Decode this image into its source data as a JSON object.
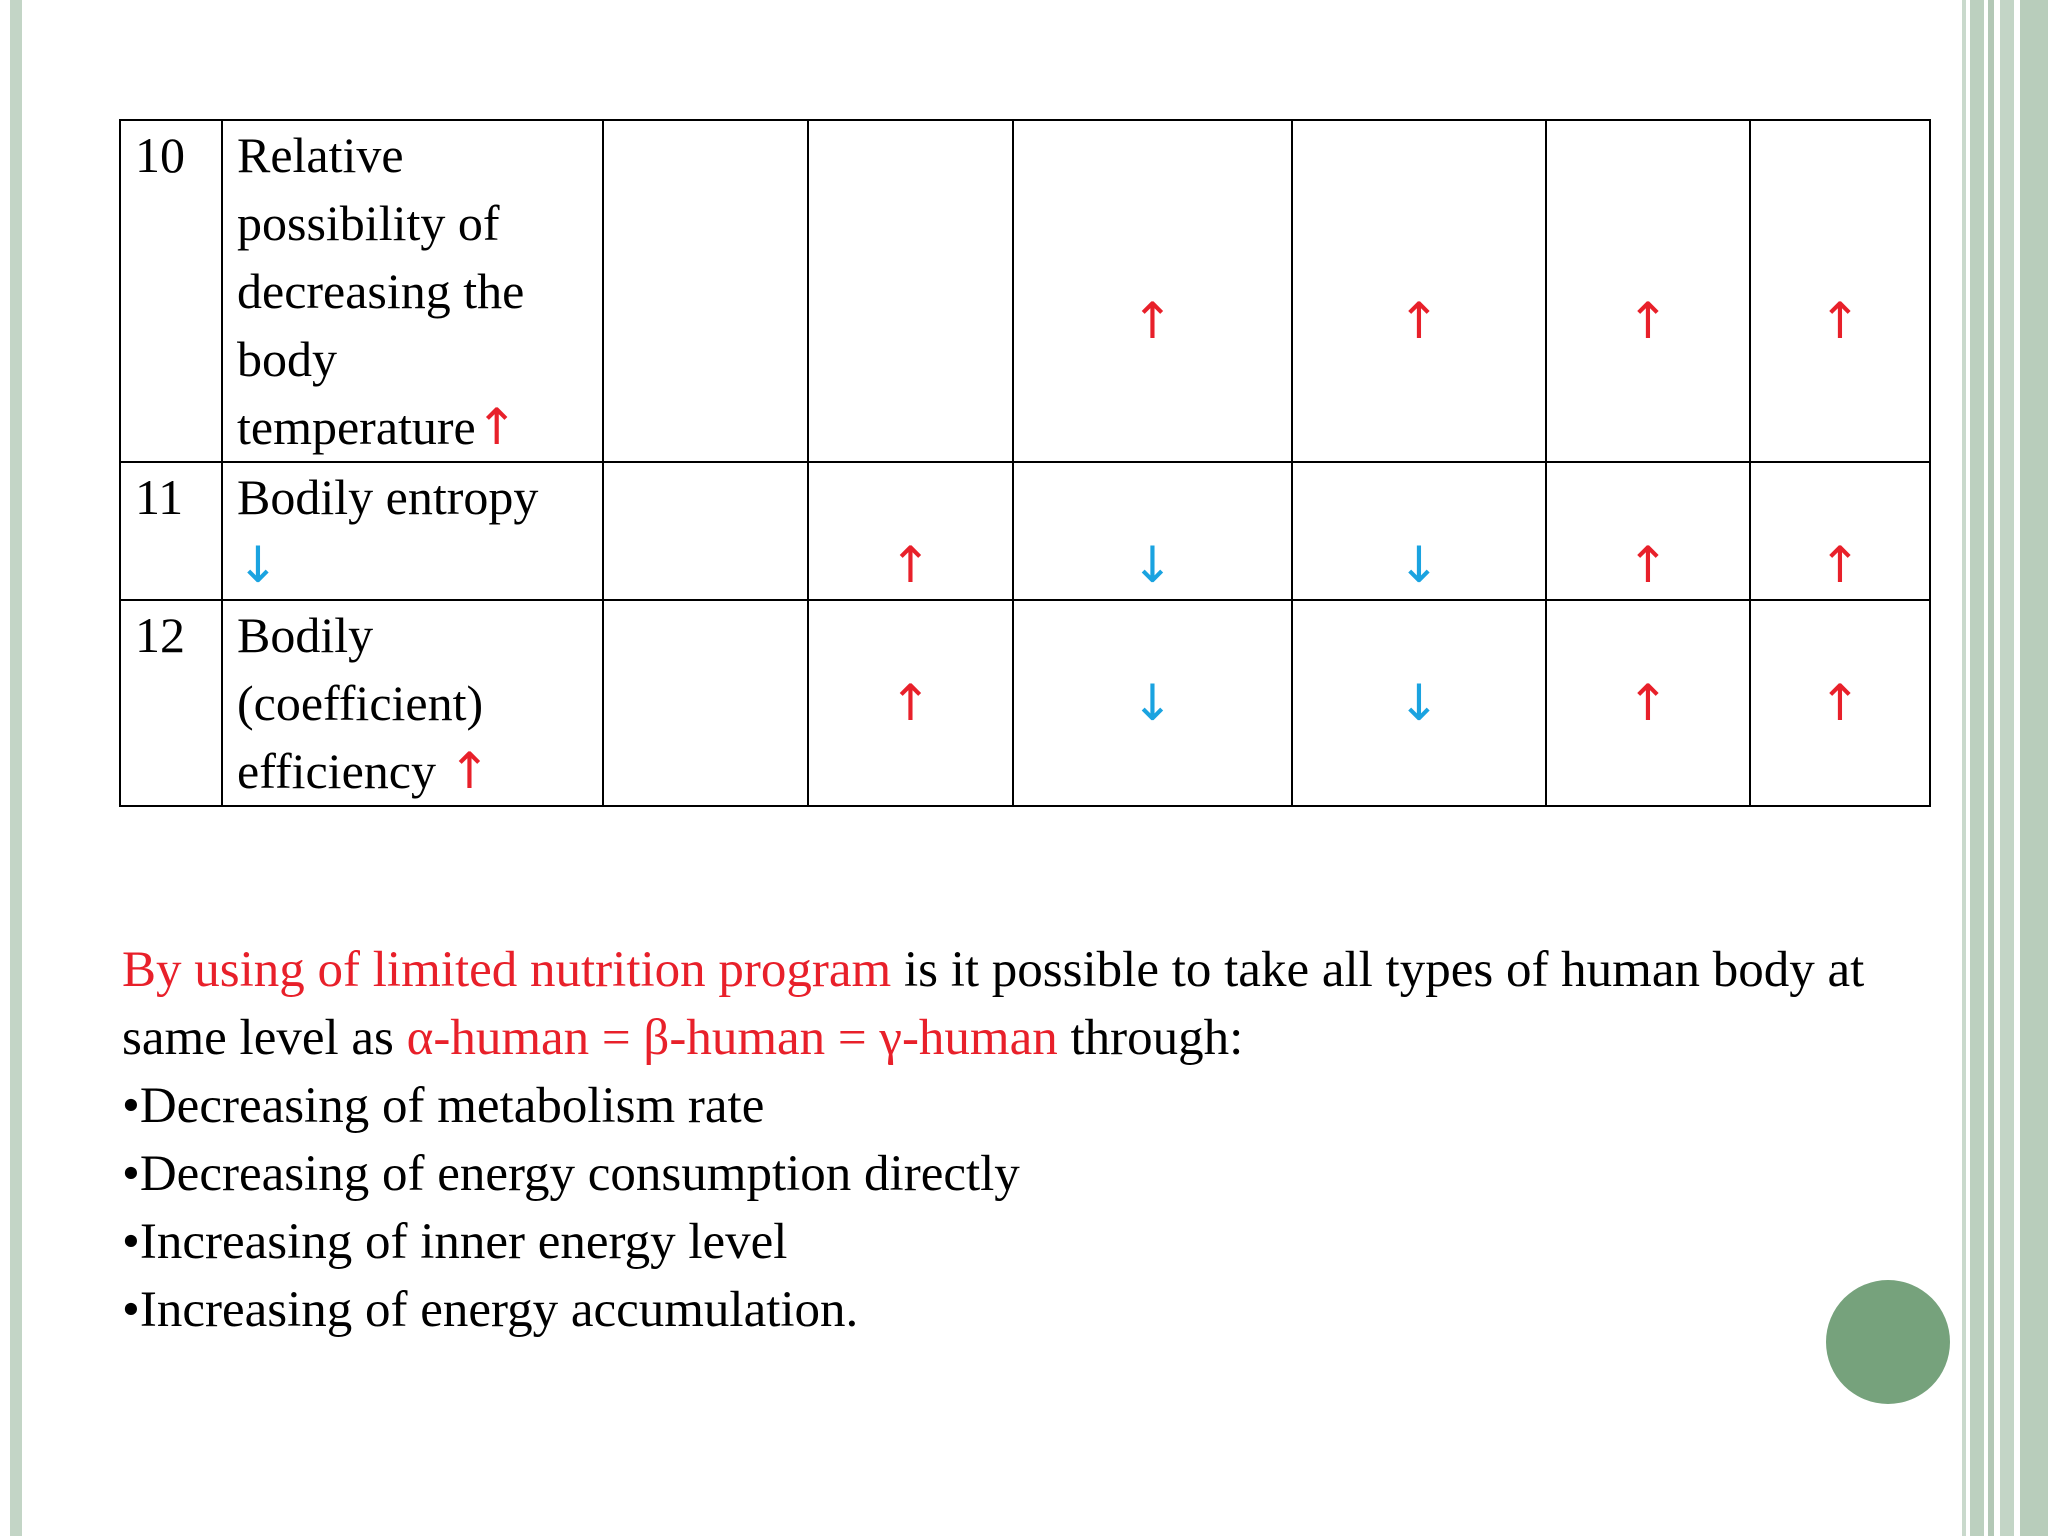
{
  "table": {
    "rows": [
      {
        "number": "10",
        "label_lines": [
          "Relative",
          "possibility of",
          "decreasing the",
          "body",
          "temperature"
        ],
        "label_arrow": "↑",
        "cells": [
          "",
          "",
          "↑",
          "↑",
          "↑",
          "↑"
        ]
      },
      {
        "number": "11",
        "label_lines": [
          "Bodily entropy"
        ],
        "label_arrow": "↓",
        "cells": [
          "",
          "↑",
          "↓",
          "↓",
          "↑",
          "↑"
        ]
      },
      {
        "number": "12",
        "label_lines": [
          "Bodily",
          "(coefficient)",
          "efficiency"
        ],
        "label_arrow": "↑",
        "cells": [
          "",
          "↑",
          "↓",
          "↓",
          "↑",
          "↑"
        ]
      }
    ]
  },
  "paragraph": {
    "red_intro": "By using of limited nutrition program",
    "text1": " is it possible to take all types of human body at same level as ",
    "red_equation": "α-human = β-human = γ-human",
    "text2": " through:"
  },
  "bullets": [
    "•Decreasing of metabolism rate",
    "•Decreasing of energy consumption directly",
    "•Increasing of inner energy level",
    "•Increasing of energy accumulation."
  ],
  "colors": {
    "up": "#e8202a",
    "down": "#1aa3e0",
    "accent_circle": "#76a27c"
  }
}
